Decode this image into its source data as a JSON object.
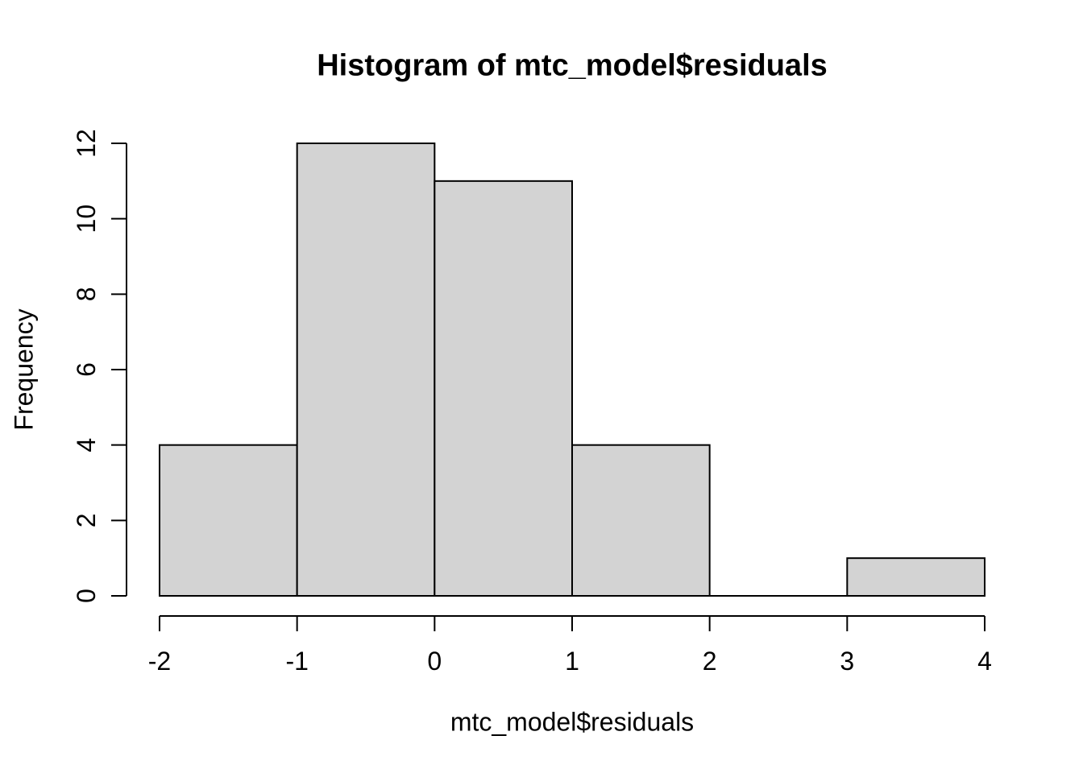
{
  "chart_data": {
    "type": "bar",
    "subtype": "histogram",
    "title": "Histogram of mtc_model$residuals",
    "xlabel": "mtc_model$residuals",
    "ylabel": "Frequency",
    "breaks": [
      -2,
      -1,
      0,
      1,
      2,
      3,
      4
    ],
    "counts": [
      4,
      12,
      11,
      4,
      0,
      1
    ],
    "x_ticks": [
      -2,
      -1,
      0,
      1,
      2,
      3,
      4
    ],
    "y_ticks": [
      0,
      2,
      4,
      6,
      8,
      10,
      12
    ],
    "xlim": [
      -2,
      4
    ],
    "ylim": [
      0,
      12
    ],
    "grid": false,
    "legend": null,
    "bar_fill": "#d3d3d3",
    "bar_border": "#000000",
    "axis_color": "#000000",
    "background": "#ffffff"
  }
}
